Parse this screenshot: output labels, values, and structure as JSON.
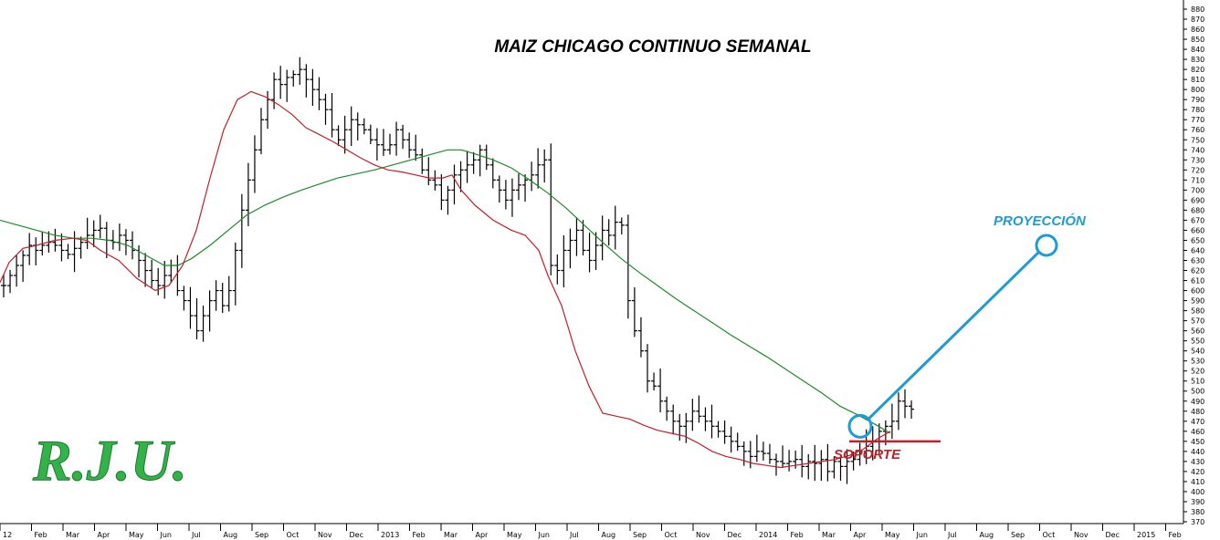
{
  "chart_data": {
    "type": "ohlc",
    "title": "MAIZ CHICAGO CONTINUO SEMANAL",
    "y_axis": {
      "min": 370,
      "max": 880,
      "step": 10,
      "side": "right",
      "ticks_from": 370,
      "ticks_to": 880
    },
    "grid": false,
    "x_axis_labels": [
      "12",
      "Feb",
      "Mar",
      "Apr",
      "May",
      "Jun",
      "Jul",
      "Aug",
      "Sep",
      "Oct",
      "Nov",
      "Dec",
      "2013",
      "Feb",
      "Mar",
      "Apr",
      "May",
      "Jun",
      "Jul",
      "Aug",
      "Sep",
      "Oct",
      "Nov",
      "Dec",
      "2014",
      "Feb",
      "Mar",
      "Apr",
      "May",
      "Jun",
      "Jul",
      "Aug",
      "Sep",
      "Oct",
      "Nov",
      "Dec",
      "2015",
      "Feb"
    ],
    "closes": [
      605,
      615,
      625,
      635,
      645,
      640,
      645,
      648,
      645,
      640,
      636,
      642,
      648,
      655,
      660,
      662,
      650,
      648,
      655,
      650,
      640,
      630,
      620,
      610,
      605,
      615,
      625,
      600,
      590,
      575,
      560,
      575,
      590,
      600,
      585,
      600,
      640,
      680,
      710,
      740,
      770,
      790,
      810,
      805,
      812,
      815,
      820,
      810,
      800,
      790,
      780,
      760,
      750,
      760,
      770,
      765,
      760,
      750,
      745,
      740,
      745,
      760,
      750,
      740,
      735,
      720,
      710,
      705,
      690,
      700,
      715,
      720,
      725,
      730,
      740,
      725,
      710,
      700,
      690,
      700,
      705,
      710,
      715,
      725,
      730,
      625,
      620,
      640,
      650,
      660,
      640,
      630,
      645,
      660,
      655,
      668,
      665,
      590,
      560,
      540,
      510,
      505,
      490,
      480,
      470,
      465,
      470,
      480,
      475,
      470,
      465,
      460,
      455,
      450,
      445,
      440,
      435,
      440,
      438,
      432,
      430,
      428,
      430,
      432,
      425,
      430,
      428,
      432,
      420,
      430,
      425,
      430,
      432,
      440,
      445,
      450,
      460,
      465,
      470,
      490,
      485,
      482
    ],
    "ma_short": {
      "name": "",
      "color": "#c0202a",
      "points": [
        [
          0,
          608
        ],
        [
          10,
          628
        ],
        [
          25,
          642
        ],
        [
          40,
          645
        ],
        [
          60,
          650
        ],
        [
          80,
          652
        ],
        [
          95,
          650
        ],
        [
          110,
          640
        ],
        [
          130,
          630
        ],
        [
          150,
          612
        ],
        [
          170,
          600
        ],
        [
          185,
          605
        ],
        [
          200,
          625
        ],
        [
          215,
          660
        ],
        [
          230,
          712
        ],
        [
          245,
          760
        ],
        [
          260,
          790
        ],
        [
          275,
          798
        ],
        [
          290,
          793
        ],
        [
          305,
          785
        ],
        [
          320,
          775
        ],
        [
          335,
          762
        ],
        [
          350,
          755
        ],
        [
          365,
          748
        ],
        [
          380,
          740
        ],
        [
          395,
          732
        ],
        [
          410,
          725
        ],
        [
          425,
          720
        ],
        [
          440,
          718
        ],
        [
          455,
          715
        ],
        [
          470,
          712
        ],
        [
          485,
          712
        ],
        [
          495,
          715
        ],
        [
          505,
          700
        ],
        [
          520,
          685
        ],
        [
          540,
          670
        ],
        [
          560,
          660
        ],
        [
          575,
          655
        ],
        [
          590,
          640
        ],
        [
          600,
          615
        ],
        [
          615,
          585
        ],
        [
          630,
          540
        ],
        [
          645,
          505
        ],
        [
          660,
          478
        ],
        [
          675,
          475
        ],
        [
          690,
          472
        ],
        [
          705,
          466
        ],
        [
          720,
          461
        ],
        [
          735,
          458
        ],
        [
          750,
          455
        ],
        [
          765,
          448
        ],
        [
          780,
          440
        ],
        [
          795,
          435
        ],
        [
          810,
          432
        ],
        [
          825,
          428
        ],
        [
          840,
          426
        ],
        [
          855,
          424
        ],
        [
          870,
          426
        ],
        [
          885,
          428
        ],
        [
          900,
          430
        ],
        [
          915,
          432
        ],
        [
          930,
          436
        ],
        [
          945,
          442
        ],
        [
          960,
          452
        ],
        [
          975,
          460
        ]
      ]
    },
    "ma_long": {
      "name": "",
      "color": "#1f8a2a",
      "points": [
        [
          0,
          670
        ],
        [
          20,
          665
        ],
        [
          40,
          660
        ],
        [
          60,
          655
        ],
        [
          80,
          652
        ],
        [
          100,
          652
        ],
        [
          120,
          650
        ],
        [
          140,
          645
        ],
        [
          160,
          635
        ],
        [
          180,
          625
        ],
        [
          195,
          625
        ],
        [
          210,
          632
        ],
        [
          230,
          645
        ],
        [
          250,
          660
        ],
        [
          270,
          675
        ],
        [
          290,
          685
        ],
        [
          310,
          693
        ],
        [
          330,
          700
        ],
        [
          350,
          706
        ],
        [
          370,
          712
        ],
        [
          390,
          716
        ],
        [
          410,
          720
        ],
        [
          430,
          725
        ],
        [
          450,
          730
        ],
        [
          470,
          735
        ],
        [
          490,
          740
        ],
        [
          505,
          740
        ],
        [
          520,
          736
        ],
        [
          540,
          730
        ],
        [
          560,
          722
        ],
        [
          580,
          710
        ],
        [
          600,
          697
        ],
        [
          620,
          682
        ],
        [
          640,
          665
        ],
        [
          660,
          648
        ],
        [
          680,
          632
        ],
        [
          700,
          618
        ],
        [
          720,
          605
        ],
        [
          740,
          592
        ],
        [
          760,
          580
        ],
        [
          780,
          568
        ],
        [
          800,
          556
        ],
        [
          820,
          545
        ],
        [
          840,
          534
        ],
        [
          860,
          522
        ],
        [
          880,
          510
        ],
        [
          900,
          498
        ],
        [
          920,
          485
        ],
        [
          940,
          476
        ],
        [
          960,
          466
        ],
        [
          975,
          458
        ]
      ]
    },
    "annotations": {
      "proyeccion": {
        "label": "PROYECCIÓN",
        "color": "#1e9ad6",
        "start": 465,
        "end": 645
      },
      "soporte": {
        "label": "SOPORTE",
        "color": "#c0202a",
        "level": 450
      }
    },
    "watermark": {
      "text": "R.J.U.",
      "color": "#33b24a"
    }
  }
}
